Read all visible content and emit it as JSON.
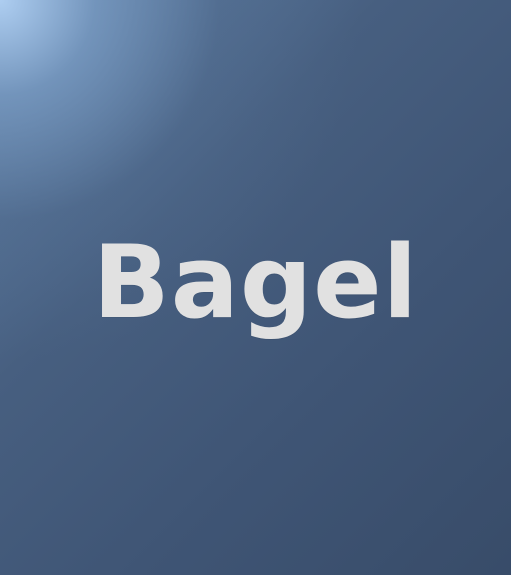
{
  "title": "Bagel",
  "colors": {
    "background_highlight": "#b2d2f5",
    "background_dark": "#384c69",
    "title_text": "#e1e1e1"
  }
}
